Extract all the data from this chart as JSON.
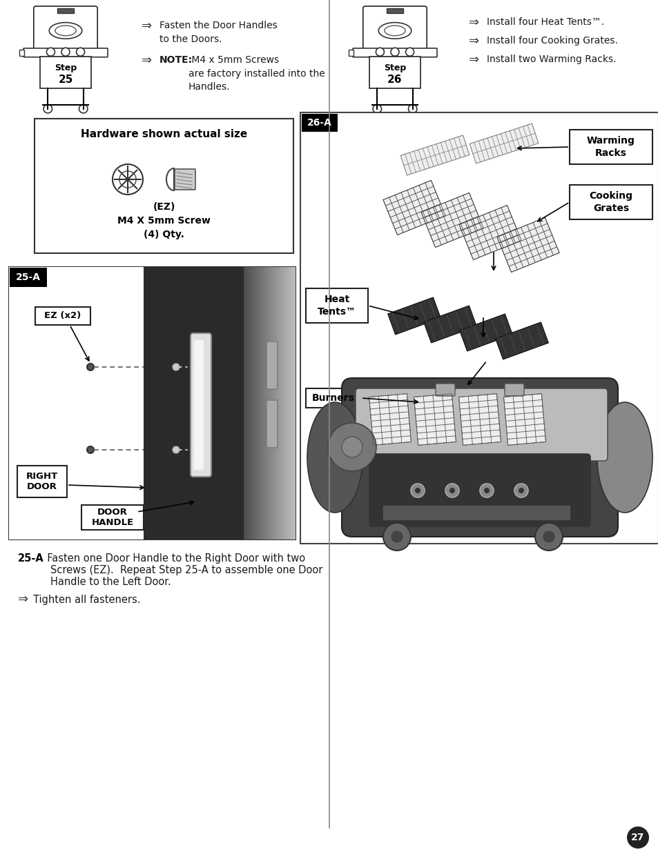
{
  "page_bg": "#ffffff",
  "page_number": "27",
  "step25_number": "25",
  "step26_number": "26",
  "step25_bullet1": "Fasten the Door Handles\nto the Doors.",
  "step25_note_bold": "NOTE:",
  "step25_note_rest": " M4 x 5mm Screws\nare factory installed into the\nHandles.",
  "hardware_title": "Hardware shown actual size",
  "hardware_ez": "(EZ)",
  "hardware_screw": "M4 X 5mm Screw",
  "hardware_qty": "(4) Qty.",
  "step26_bullet1": "Install four Heat Tents™.",
  "step26_bullet2": "Install four Cooking Grates.",
  "step26_bullet3": "Install two Warming Racks.",
  "label_26A": "26-A",
  "label_warming": "Warming\nRacks",
  "label_cooking": "Cooking\nGrates",
  "label_heat": "Heat\nTents™",
  "label_burners": "Burners",
  "label_25A": "25-A",
  "label_ez_x2": "EZ (x2)",
  "label_right_door": "RIGHT\nDOOR",
  "label_door_handle": "DOOR\nHANDLE",
  "caption_bold": "25-A",
  "caption_line1": ". Fasten one Door Handle to the Right Door with two",
  "caption_line2": "Screws (EZ).  Repeat Step 25-A to assemble one Door",
  "caption_line3": "Handle to the Left Door.",
  "caption_arrow_text": "Tighten all fasteners."
}
